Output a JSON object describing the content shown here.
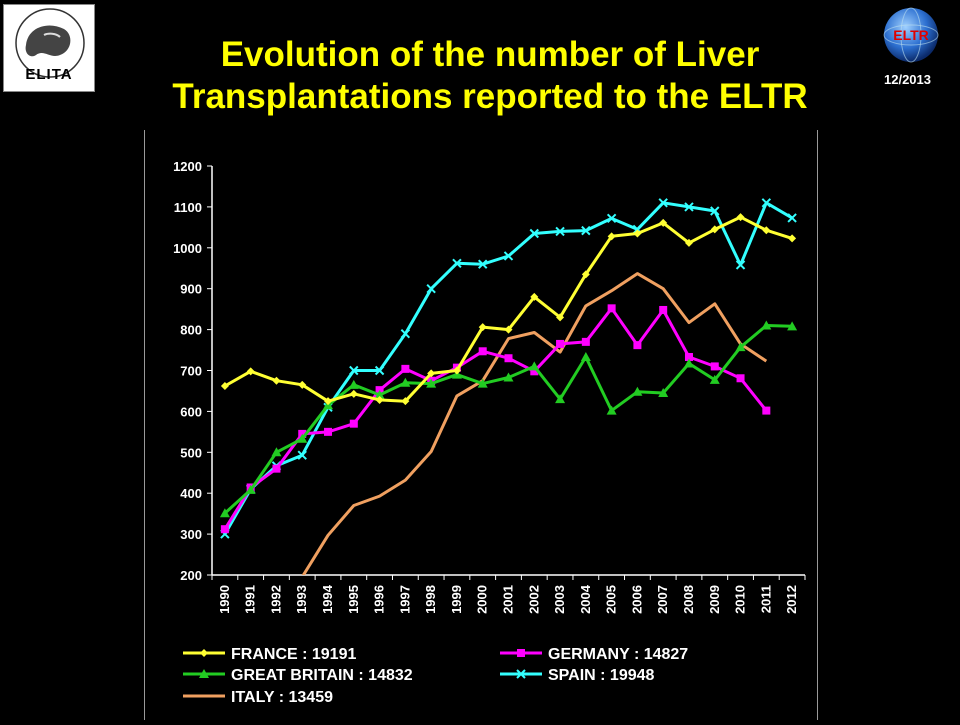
{
  "header": {
    "title_line1": "Evolution of the number of Liver",
    "title_line2": "Transplantations reported to the ELTR",
    "date": "12/2013",
    "left_logo_text": "ELITA",
    "right_logo_text": "ELTR"
  },
  "colors": {
    "background": "#000000",
    "title": "#ffff00",
    "france": "#ffff33",
    "germany": "#ff00ff",
    "great_britain": "#22cc22",
    "spain": "#33ffff",
    "italy": "#f0a060"
  },
  "chart_data": {
    "type": "line",
    "title": "",
    "xlabel": "",
    "ylabel": "",
    "ylim": [
      200,
      1200
    ],
    "yticks": [
      "200",
      "300",
      "400",
      "500",
      "600",
      "700",
      "800",
      "900",
      "1000",
      "1100",
      "1200"
    ],
    "categories": [
      "1990",
      "1991",
      "1992",
      "1993",
      "1994",
      "1995",
      "1996",
      "1997",
      "1998",
      "1999",
      "2000",
      "2001",
      "2002",
      "2003",
      "2004",
      "2005",
      "2006",
      "2007",
      "2008",
      "2009",
      "2010",
      "2011",
      "2012"
    ],
    "grid": false,
    "legend_position": "bottom",
    "series": [
      {
        "name": "FRANCE : 19191",
        "key": "france",
        "color": "#ffff33",
        "marker": "diamond",
        "values": [
          662,
          698,
          675,
          665,
          625,
          643,
          628,
          625,
          693,
          700,
          806,
          800,
          880,
          830,
          935,
          1028,
          1035,
          1061,
          1012,
          1045,
          1075,
          1043,
          1023
        ]
      },
      {
        "name": "GERMANY : 14827",
        "key": "germany",
        "color": "#ff00ff",
        "marker": "square",
        "values": [
          312,
          414,
          460,
          545,
          550,
          570,
          652,
          704,
          675,
          707,
          747,
          730,
          698,
          765,
          770,
          852,
          762,
          848,
          733,
          710,
          681,
          602,
          null
        ]
      },
      {
        "name": "GREAT BRITAIN : 14832",
        "key": "great_britain",
        "color": "#22cc22",
        "marker": "triangle",
        "values": [
          351,
          408,
          500,
          533,
          615,
          665,
          640,
          670,
          668,
          690,
          668,
          683,
          710,
          630,
          733,
          602,
          648,
          645,
          717,
          677,
          757,
          810,
          808
        ]
      },
      {
        "name": "SPAIN : 19948",
        "key": "spain",
        "color": "#33ffff",
        "marker": "x",
        "values": [
          300,
          410,
          467,
          493,
          610,
          700,
          700,
          790,
          900,
          962,
          960,
          980,
          1035,
          1040,
          1042,
          1072,
          1045,
          1110,
          1100,
          1090,
          958,
          1110,
          1073
        ]
      },
      {
        "name": "ITALY : 13459",
        "key": "italy",
        "color": "#f0a060",
        "marker": "none",
        "values": [
          null,
          null,
          null,
          195,
          297,
          370,
          393,
          432,
          502,
          638,
          675,
          778,
          793,
          745,
          858,
          895,
          937,
          900,
          817,
          863,
          765,
          723,
          null
        ]
      }
    ]
  }
}
